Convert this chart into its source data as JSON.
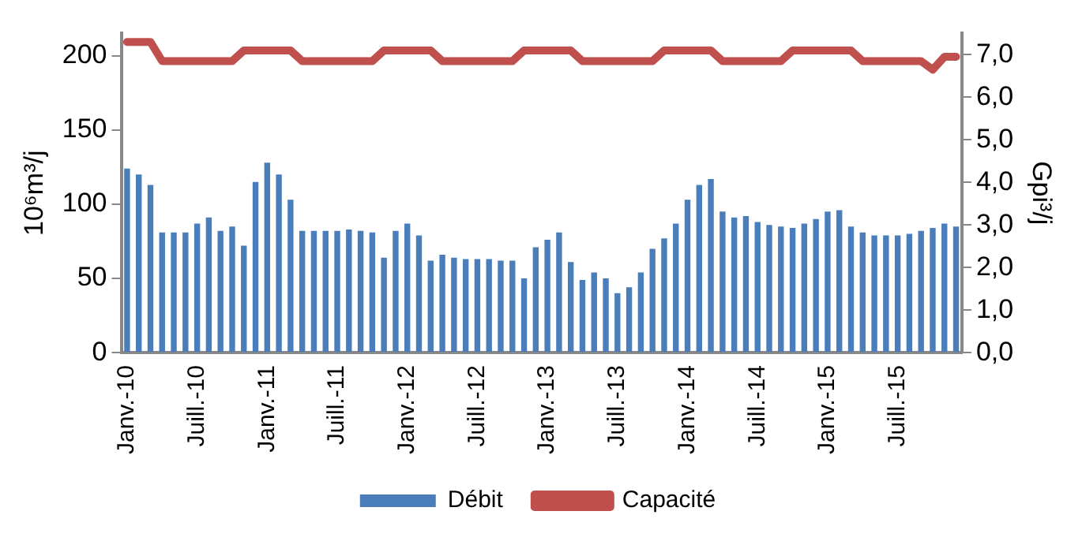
{
  "chart_data": {
    "type": "bar",
    "ylabel": "10⁶m³/j",
    "y2label": "Gpi³/j",
    "categories": [
      "Janv.-10",
      null,
      null,
      null,
      null,
      null,
      "Juill.-10",
      null,
      null,
      null,
      null,
      null,
      "Janv.-11",
      null,
      null,
      null,
      null,
      null,
      "Juill.-11",
      null,
      null,
      null,
      null,
      null,
      "Janv.-12",
      null,
      null,
      null,
      null,
      null,
      "Juill.-12",
      null,
      null,
      null,
      null,
      null,
      "Janv.-13",
      null,
      null,
      null,
      null,
      null,
      "Juill.-13",
      null,
      null,
      null,
      null,
      null,
      "Janv.-14",
      null,
      null,
      null,
      null,
      null,
      "Juill.-14",
      null,
      null,
      null,
      null,
      null,
      "Janv.-15",
      null,
      null,
      null,
      null,
      null,
      "Juill.-15",
      null,
      null,
      null,
      null,
      null
    ],
    "series": [
      {
        "name": "Débit",
        "color": "#4a7ebb",
        "values": [
          124,
          120,
          113,
          81,
          81,
          81,
          87,
          91,
          82,
          85,
          72,
          115,
          128,
          120,
          103,
          82,
          82,
          82,
          82,
          83,
          82,
          81,
          64,
          82,
          87,
          79,
          62,
          66,
          64,
          63,
          63,
          63,
          62,
          62,
          50,
          71,
          76,
          81,
          61,
          49,
          54,
          50,
          40,
          44,
          54,
          70,
          77,
          87,
          103,
          113,
          117,
          95,
          91,
          92,
          88,
          86,
          85,
          84,
          87,
          90,
          95,
          96,
          85,
          81,
          79,
          79,
          79,
          80,
          82,
          84,
          87,
          85
        ]
      },
      {
        "name": "Capacité",
        "type": "line",
        "axis": "y2",
        "color": "#c0504d",
        "values": [
          7.3,
          7.3,
          7.3,
          6.85,
          6.85,
          6.85,
          6.85,
          6.85,
          6.85,
          6.85,
          7.1,
          7.1,
          7.1,
          7.1,
          7.1,
          6.85,
          6.85,
          6.85,
          6.85,
          6.85,
          6.85,
          6.85,
          7.1,
          7.1,
          7.1,
          7.1,
          7.1,
          6.85,
          6.85,
          6.85,
          6.85,
          6.85,
          6.85,
          6.85,
          7.1,
          7.1,
          7.1,
          7.1,
          7.1,
          6.85,
          6.85,
          6.85,
          6.85,
          6.85,
          6.85,
          6.85,
          7.1,
          7.1,
          7.1,
          7.1,
          7.1,
          6.85,
          6.85,
          6.85,
          6.85,
          6.85,
          6.85,
          7.1,
          7.1,
          7.1,
          7.1,
          7.1,
          7.1,
          6.85,
          6.85,
          6.85,
          6.85,
          6.85,
          6.85,
          6.65,
          6.95,
          6.95
        ]
      }
    ],
    "ylim": [
      0,
      215
    ],
    "yticks": [
      0,
      50,
      100,
      150,
      200
    ],
    "y2lim": [
      0,
      7.5
    ],
    "y2ticks": [
      {
        "value": 0,
        "label": "0,0"
      },
      {
        "value": 1,
        "label": "1,0"
      },
      {
        "value": 2,
        "label": "2,0"
      },
      {
        "value": 3,
        "label": "3,0"
      },
      {
        "value": 4,
        "label": "4,0"
      },
      {
        "value": 5,
        "label": "5,0"
      },
      {
        "value": 6,
        "label": "6,0"
      },
      {
        "value": 7,
        "label": "7,0"
      }
    ],
    "grid": false,
    "legend": "bottom",
    "marker": "none"
  }
}
